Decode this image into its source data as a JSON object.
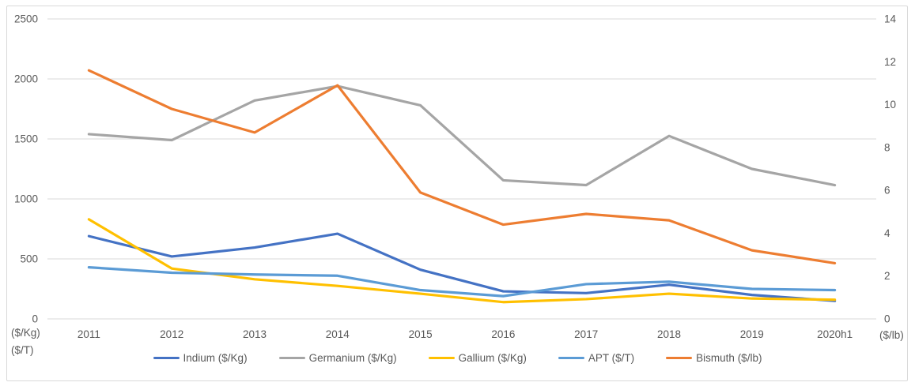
{
  "chart_data": {
    "type": "line",
    "title": "",
    "categories": [
      "2011",
      "2012",
      "2013",
      "2014",
      "2015",
      "2016",
      "2017",
      "2018",
      "2019",
      "2020h1"
    ],
    "series": [
      {
        "name": "Indium ($/Kg)",
        "key": "indium",
        "axis": "left",
        "color": "#4472C4",
        "values": [
          690,
          520,
          595,
          710,
          410,
          230,
          215,
          285,
          200,
          150
        ]
      },
      {
        "name": "Germanium ($/Kg)",
        "key": "germanium",
        "axis": "left",
        "color": "#A5A5A5",
        "values": [
          1540,
          1490,
          1820,
          1940,
          1780,
          1155,
          1115,
          1525,
          1250,
          1115
        ]
      },
      {
        "name": "Gallium ($/Kg)",
        "key": "gallium",
        "axis": "left",
        "color": "#FFC000",
        "values": [
          830,
          420,
          330,
          275,
          210,
          140,
          165,
          210,
          170,
          160
        ]
      },
      {
        "name": "APT ($/T)",
        "key": "apt",
        "axis": "left",
        "color": "#5B9BD5",
        "values": [
          430,
          385,
          370,
          360,
          240,
          190,
          290,
          310,
          250,
          240
        ]
      },
      {
        "name": "Bismuth ($/lb)",
        "key": "bismuth",
        "axis": "right",
        "color": "#ED7D31",
        "values": [
          11.6,
          9.8,
          8.7,
          10.9,
          5.9,
          4.4,
          4.9,
          4.6,
          3.2,
          2.6
        ]
      }
    ],
    "left_axis": {
      "min": 0,
      "max": 2500,
      "ticks": [
        0,
        500,
        1000,
        1500,
        2000,
        2500
      ],
      "unit_labels": [
        "($/Kg)",
        "($/T)"
      ]
    },
    "right_axis": {
      "min": 0,
      "max": 14,
      "ticks": [
        0,
        2,
        4,
        6,
        8,
        10,
        12,
        14
      ],
      "unit_label": "($/lb)"
    },
    "grid": true,
    "legend_position": "bottom"
  },
  "colors": {
    "grid": "#D9D9D9",
    "border": "#D9D9D9",
    "text": "#595959",
    "background": "#FFFFFF"
  }
}
